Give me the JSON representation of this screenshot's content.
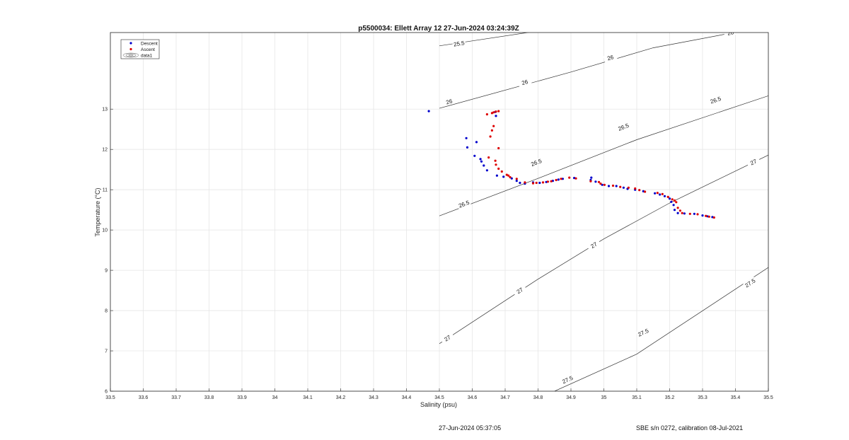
{
  "chart_data": {
    "type": "scatter",
    "title": "p5500034: Ellett Array 12 27-Jun-2024 03:24:39Z",
    "xlabel": "Salinity (psu)",
    "ylabel": "Temperature (°C)",
    "xlim": [
      33.5,
      35.5
    ],
    "ylim": [
      6,
      14.9
    ],
    "x_ticks": [
      "33.5",
      "33.6",
      "33.7",
      "33.8",
      "33.9",
      "34",
      "34.1",
      "34.2",
      "34.3",
      "34.4",
      "34.5",
      "34.6",
      "34.7",
      "34.8",
      "34.9",
      "35",
      "35.1",
      "35.2",
      "35.3",
      "35.4",
      "35.5"
    ],
    "y_ticks": [
      "6",
      "7",
      "8",
      "9",
      "10",
      "11",
      "12",
      "13"
    ],
    "grid": true,
    "legend_position": "top-left",
    "legend": [
      {
        "label": "Descent",
        "color": "#0000cc",
        "marker": "dot"
      },
      {
        "label": "Ascent",
        "color": "#dd0000",
        "marker": "dot"
      },
      {
        "label": "data1",
        "color": "#555555",
        "marker": "contour"
      }
    ],
    "series": [
      {
        "name": "Descent",
        "color": "#0000cc",
        "points": [
          [
            34.582,
            12.28
          ],
          [
            34.585,
            12.05
          ],
          [
            34.613,
            12.18
          ],
          [
            34.607,
            11.84
          ],
          [
            34.625,
            11.76
          ],
          [
            34.628,
            11.7
          ],
          [
            34.635,
            11.6
          ],
          [
            34.645,
            11.48
          ],
          [
            34.675,
            11.35
          ],
          [
            34.695,
            11.32
          ],
          [
            34.72,
            11.28
          ],
          [
            34.735,
            11.22
          ],
          [
            34.745,
            11.17
          ],
          [
            34.76,
            11.15
          ],
          [
            34.785,
            11.18
          ],
          [
            34.805,
            11.17
          ],
          [
            34.825,
            11.19
          ],
          [
            34.845,
            11.22
          ],
          [
            34.862,
            11.25
          ],
          [
            34.875,
            11.27
          ],
          [
            34.91,
            11.29
          ],
          [
            34.96,
            11.24
          ],
          [
            34.962,
            11.3
          ],
          [
            34.975,
            11.2
          ],
          [
            34.995,
            11.12
          ],
          [
            35.015,
            11.09
          ],
          [
            35.038,
            11.09
          ],
          [
            35.06,
            11.05
          ],
          [
            35.072,
            11.02
          ],
          [
            35.095,
            11.0
          ],
          [
            35.12,
            10.96
          ],
          [
            35.155,
            10.91
          ],
          [
            35.17,
            10.88
          ],
          [
            35.185,
            10.84
          ],
          [
            35.2,
            10.78
          ],
          [
            35.205,
            10.7
          ],
          [
            35.212,
            10.62
          ],
          [
            35.215,
            10.5
          ],
          [
            35.225,
            10.42
          ],
          [
            35.245,
            10.41
          ],
          [
            35.275,
            10.4
          ],
          [
            35.3,
            10.36
          ],
          [
            35.315,
            10.34
          ],
          [
            35.33,
            10.32
          ],
          [
            34.672,
            12.83
          ],
          [
            34.67,
            12.93
          ],
          [
            34.468,
            12.95
          ]
        ]
      },
      {
        "name": "Ascent",
        "color": "#dd0000",
        "points": [
          [
            34.68,
            12.95
          ],
          [
            34.672,
            12.94
          ],
          [
            34.665,
            12.92
          ],
          [
            34.66,
            12.9
          ],
          [
            34.645,
            12.87
          ],
          [
            34.665,
            12.58
          ],
          [
            34.66,
            12.47
          ],
          [
            34.655,
            12.32
          ],
          [
            34.68,
            12.03
          ],
          [
            34.65,
            11.8
          ],
          [
            34.67,
            11.72
          ],
          [
            34.672,
            11.62
          ],
          [
            34.68,
            11.52
          ],
          [
            34.69,
            11.45
          ],
          [
            34.705,
            11.37
          ],
          [
            34.71,
            11.35
          ],
          [
            34.715,
            11.31
          ],
          [
            34.735,
            11.27
          ],
          [
            34.76,
            11.18
          ],
          [
            34.785,
            11.16
          ],
          [
            34.795,
            11.17
          ],
          [
            34.815,
            11.18
          ],
          [
            34.83,
            11.2
          ],
          [
            34.84,
            11.21
          ],
          [
            34.855,
            11.24
          ],
          [
            34.87,
            11.27
          ],
          [
            34.895,
            11.3
          ],
          [
            34.915,
            11.28
          ],
          [
            34.96,
            11.21
          ],
          [
            34.985,
            11.19
          ],
          [
            34.99,
            11.15
          ],
          [
            35.002,
            11.12
          ],
          [
            35.028,
            11.1
          ],
          [
            35.05,
            11.07
          ],
          [
            35.075,
            11.05
          ],
          [
            35.095,
            11.03
          ],
          [
            35.108,
            10.99
          ],
          [
            35.125,
            10.95
          ],
          [
            35.163,
            10.92
          ],
          [
            35.178,
            10.89
          ],
          [
            35.195,
            10.82
          ],
          [
            35.208,
            10.76
          ],
          [
            35.215,
            10.73
          ],
          [
            35.22,
            10.69
          ],
          [
            35.225,
            10.55
          ],
          [
            35.232,
            10.48
          ],
          [
            35.238,
            10.42
          ],
          [
            35.262,
            10.4
          ],
          [
            35.285,
            10.39
          ],
          [
            35.31,
            10.35
          ],
          [
            35.32,
            10.33
          ],
          [
            35.335,
            10.31
          ]
        ]
      }
    ],
    "contours": [
      {
        "value": 25.5,
        "points": [
          [
            34.5,
            14.57
          ],
          [
            34.85,
            15.0
          ]
        ],
        "labels": [
          {
            "text": "25.5",
            "at": [
              34.56,
              14.62
            ]
          }
        ]
      },
      {
        "value": 26,
        "points": [
          [
            34.5,
            13.02
          ],
          [
            34.9,
            13.92
          ],
          [
            35.15,
            14.52
          ],
          [
            35.46,
            15.0
          ]
        ],
        "labels": [
          {
            "text": "26",
            "at": [
              34.53,
              13.18
            ]
          },
          {
            "text": "26",
            "at": [
              34.76,
              13.66
            ]
          },
          {
            "text": "26",
            "at": [
              35.02,
              14.27
            ]
          },
          {
            "text": "26",
            "at": [
              35.385,
              14.89
            ]
          }
        ]
      },
      {
        "value": 26.5,
        "points": [
          [
            34.5,
            10.35
          ],
          [
            34.8,
            11.28
          ],
          [
            35.1,
            12.24
          ],
          [
            35.5,
            13.33
          ]
        ],
        "labels": [
          {
            "text": "26.5",
            "at": [
              34.575,
              10.64
            ]
          },
          {
            "text": "26.5",
            "at": [
              34.795,
              11.67
            ]
          },
          {
            "text": "26.5",
            "at": [
              35.06,
              12.55
            ]
          },
          {
            "text": "26.5",
            "at": [
              35.34,
              13.22
            ]
          }
        ]
      },
      {
        "value": 27,
        "points": [
          [
            34.5,
            7.18
          ],
          [
            34.8,
            8.78
          ],
          [
            35.0,
            9.78
          ],
          [
            35.2,
            10.67
          ],
          [
            35.5,
            11.86
          ]
        ],
        "labels": [
          {
            "text": "27",
            "at": [
              34.525,
              7.31
            ]
          },
          {
            "text": "27",
            "at": [
              34.745,
              8.49
            ]
          },
          {
            "text": "27",
            "at": [
              34.97,
              9.62
            ]
          },
          {
            "text": "27",
            "at": [
              35.455,
              11.68
            ]
          }
        ]
      },
      {
        "value": 27.5,
        "points": [
          [
            34.85,
            6.0
          ],
          [
            35.1,
            6.92
          ],
          [
            35.5,
            9.07
          ]
        ],
        "labels": [
          {
            "text": "27.5",
            "at": [
              34.89,
              6.28
            ]
          },
          {
            "text": "27.5",
            "at": [
              35.12,
              7.45
            ]
          },
          {
            "text": "27.5",
            "at": [
              35.445,
              8.68
            ]
          }
        ]
      }
    ]
  },
  "footer": {
    "date": "27-Jun-2024 05:37:05",
    "calibration": "SBE s/n 0272, calibration 08-Jul-2021"
  }
}
